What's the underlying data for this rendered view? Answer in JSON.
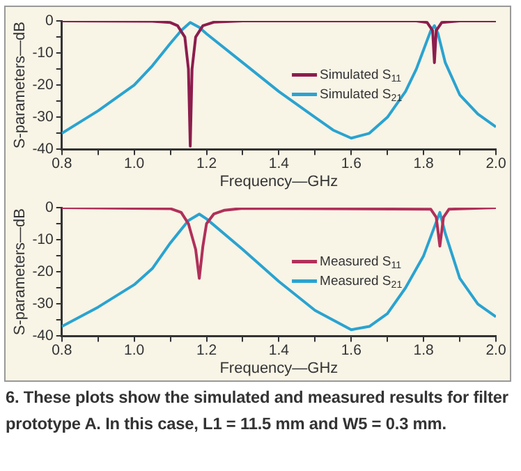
{
  "chart_data": [
    {
      "type": "line",
      "xlabel": "Frequency—GHz",
      "ylabel": "S-parameters—dB",
      "xlim": [
        0.8,
        2.0
      ],
      "ylim": [
        -40,
        0
      ],
      "xticks": [
        {
          "value": 0.8,
          "label": "0.8"
        },
        {
          "value": 0.9,
          "label": null
        },
        {
          "value": 1.0,
          "label": "1.0"
        },
        {
          "value": 1.1,
          "label": null
        },
        {
          "value": 1.2,
          "label": "1.2"
        },
        {
          "value": 1.3,
          "label": null
        },
        {
          "value": 1.4,
          "label": "1.4"
        },
        {
          "value": 1.5,
          "label": null
        },
        {
          "value": 1.6,
          "label": "1.6"
        },
        {
          "value": 1.7,
          "label": null
        },
        {
          "value": 1.8,
          "label": "1.8"
        },
        {
          "value": 1.9,
          "label": null
        },
        {
          "value": 2.0,
          "label": "2.0"
        }
      ],
      "yticks": [
        0,
        {
          "value": -5,
          "label": null
        },
        -10,
        {
          "value": -15,
          "label": null
        },
        -20,
        {
          "value": -25,
          "label": null
        },
        -30,
        {
          "value": -35,
          "label": null
        },
        -40
      ],
      "grid": false,
      "legend": "right",
      "marker": "none",
      "line_style": "solid",
      "series": [
        {
          "name": "Simulated S$_{11}$",
          "color": "#8c1d4d",
          "x": [
            0.8,
            1.05,
            1.1,
            1.12,
            1.14,
            1.15,
            1.155,
            1.16,
            1.17,
            1.19,
            1.22,
            1.3,
            1.78,
            1.81,
            1.825,
            1.83,
            1.835,
            1.85,
            1.9,
            2.0
          ],
          "values": [
            0,
            -0.1,
            -0.5,
            -1.5,
            -5,
            -15,
            -39,
            -15,
            -5,
            -1.5,
            -0.4,
            0,
            0,
            -0.5,
            -3,
            -13,
            -3,
            -0.5,
            0,
            0
          ]
        },
        {
          "name": "Simulated S$_{21}$",
          "color": "#2aa3d0",
          "x": [
            0.8,
            0.9,
            1.0,
            1.05,
            1.1,
            1.13,
            1.155,
            1.18,
            1.2,
            1.3,
            1.4,
            1.5,
            1.55,
            1.6,
            1.65,
            1.7,
            1.75,
            1.78,
            1.8,
            1.82,
            1.83,
            1.84,
            1.86,
            1.9,
            1.95,
            2.0
          ],
          "values": [
            -35,
            -28,
            -20,
            -14,
            -7,
            -3,
            -0.5,
            -2,
            -4,
            -13,
            -22,
            -30,
            -34,
            -36.5,
            -35,
            -30,
            -22,
            -15,
            -9,
            -3,
            -1.5,
            -4,
            -13,
            -23,
            -29,
            -33
          ]
        }
      ]
    },
    {
      "type": "line",
      "xlabel": "Frequency—GHz",
      "ylabel": "S-parameters—dB",
      "xlim": [
        0.8,
        2.0
      ],
      "ylim": [
        -40,
        0
      ],
      "xticks": [
        {
          "value": 0.8,
          "label": "0.8"
        },
        {
          "value": 0.9,
          "label": null
        },
        {
          "value": 1.0,
          "label": "1.0"
        },
        {
          "value": 1.1,
          "label": null
        },
        {
          "value": 1.2,
          "label": "1.2"
        },
        {
          "value": 1.3,
          "label": null
        },
        {
          "value": 1.4,
          "label": "1.4"
        },
        {
          "value": 1.5,
          "label": null
        },
        {
          "value": 1.6,
          "label": "1.6"
        },
        {
          "value": 1.7,
          "label": null
        },
        {
          "value": 1.8,
          "label": "1.8"
        },
        {
          "value": 1.9,
          "label": null
        },
        {
          "value": 2.0,
          "label": "2.0"
        }
      ],
      "yticks": [
        0,
        {
          "value": -5,
          "label": null
        },
        -10,
        {
          "value": -15,
          "label": null
        },
        -20,
        {
          "value": -25,
          "label": null
        },
        -30,
        {
          "value": -35,
          "label": null
        },
        -40
      ],
      "grid": false,
      "legend": "right",
      "marker": "none",
      "line_style": "solid",
      "annotations": [
        "6. These plots show the simulated and measured results for filter prototype A. In this case, L1 = 11.5 mm and W5 = 0.3 mm."
      ],
      "series": [
        {
          "name": "Measured S$_{11}$",
          "color": "#b0305a",
          "x": [
            0.8,
            1.1,
            1.13,
            1.15,
            1.17,
            1.18,
            1.19,
            1.2,
            1.22,
            1.25,
            1.3,
            1.82,
            1.835,
            1.845,
            1.855,
            1.87,
            2.0
          ],
          "values": [
            0,
            -0.3,
            -1.5,
            -5,
            -13,
            -22,
            -12,
            -5,
            -2,
            -0.8,
            -0.2,
            -0.5,
            -3,
            -12,
            -3,
            -0.5,
            0
          ]
        },
        {
          "name": "Measured S$_{21}$",
          "color": "#2aa3d0",
          "x": [
            0.8,
            0.9,
            1.0,
            1.05,
            1.1,
            1.15,
            1.18,
            1.2,
            1.3,
            1.4,
            1.5,
            1.6,
            1.65,
            1.7,
            1.75,
            1.8,
            1.83,
            1.845,
            1.86,
            1.9,
            1.95,
            2.0
          ],
          "values": [
            -37,
            -31,
            -24,
            -19,
            -11,
            -4,
            -2,
            -3.5,
            -13,
            -23,
            -32,
            -38,
            -37,
            -33,
            -25,
            -15,
            -6,
            -1.5,
            -8,
            -22,
            -30,
            -34
          ]
        }
      ]
    }
  ]
}
